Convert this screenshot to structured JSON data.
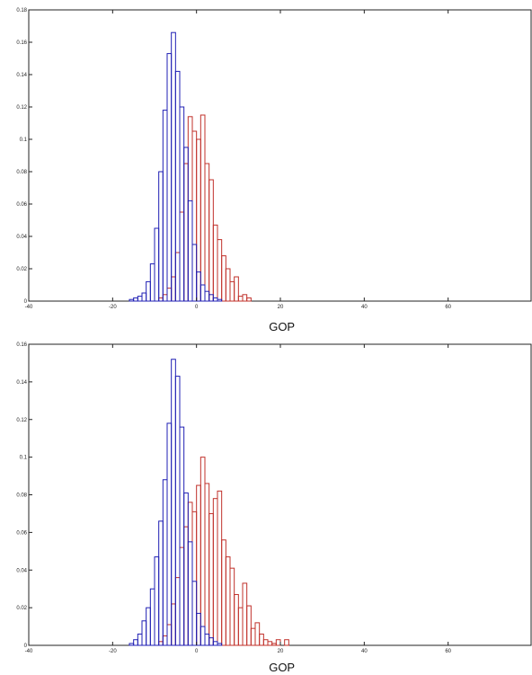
{
  "colors": {
    "blue": "#1f1fb4",
    "red": "#c0302a",
    "axis": "#222222",
    "background": "#ffffff"
  },
  "chart_data": [
    {
      "type": "bar",
      "subtype": "histogram",
      "xlabel": "GOP",
      "ylabel": "",
      "title": "",
      "xlim": [
        -40,
        80
      ],
      "ylim": [
        0,
        0.18
      ],
      "xticks": [
        "-40",
        "-20",
        "0",
        "20",
        "40",
        "60"
      ],
      "yticks": [
        "0",
        "0.02",
        "0.04",
        "0.06",
        "0.08",
        "0.1",
        "0.12",
        "0.14",
        "0.16",
        "0.18"
      ],
      "grid": false,
      "bin_width": 1,
      "series": [
        {
          "color": "blue",
          "bins": [
            [
              -16,
              0.001
            ],
            [
              -15,
              0.002
            ],
            [
              -14,
              0.003
            ],
            [
              -13,
              0.005
            ],
            [
              -12,
              0.012
            ],
            [
              -11,
              0.023
            ],
            [
              -10,
              0.045
            ],
            [
              -9,
              0.08
            ],
            [
              -8,
              0.118
            ],
            [
              -7,
              0.153
            ],
            [
              -6,
              0.166
            ],
            [
              -5,
              0.142
            ],
            [
              -4,
              0.12
            ],
            [
              -3,
              0.095
            ],
            [
              -2,
              0.062
            ],
            [
              -1,
              0.035
            ],
            [
              0,
              0.018
            ],
            [
              1,
              0.01
            ],
            [
              2,
              0.006
            ],
            [
              3,
              0.004
            ],
            [
              4,
              0.002
            ],
            [
              5,
              0.001
            ]
          ]
        },
        {
          "color": "red",
          "bins": [
            [
              -9,
              0.002
            ],
            [
              -8,
              0.004
            ],
            [
              -7,
              0.008
            ],
            [
              -6,
              0.015
            ],
            [
              -5,
              0.03
            ],
            [
              -4,
              0.055
            ],
            [
              -3,
              0.085
            ],
            [
              -2,
              0.114
            ],
            [
              -1,
              0.105
            ],
            [
              0,
              0.1
            ],
            [
              1,
              0.115
            ],
            [
              2,
              0.085
            ],
            [
              3,
              0.075
            ],
            [
              4,
              0.047
            ],
            [
              5,
              0.038
            ],
            [
              6,
              0.028
            ],
            [
              7,
              0.02
            ],
            [
              8,
              0.012
            ],
            [
              9,
              0.015
            ],
            [
              10,
              0.003
            ],
            [
              11,
              0.004
            ],
            [
              12,
              0.002
            ]
          ]
        }
      ]
    },
    {
      "type": "bar",
      "subtype": "histogram",
      "xlabel": "GOP",
      "ylabel": "",
      "title": "",
      "xlim": [
        -40,
        80
      ],
      "ylim": [
        0,
        0.16
      ],
      "xticks": [
        "-40",
        "-20",
        "0",
        "20",
        "40",
        "60"
      ],
      "yticks": [
        "0",
        "0.02",
        "0.04",
        "0.06",
        "0.08",
        "0.1",
        "0.12",
        "0.14",
        "0.16"
      ],
      "grid": false,
      "bin_width": 1,
      "series": [
        {
          "color": "blue",
          "bins": [
            [
              -16,
              0.001
            ],
            [
              -15,
              0.003
            ],
            [
              -14,
              0.006
            ],
            [
              -13,
              0.013
            ],
            [
              -12,
              0.02
            ],
            [
              -11,
              0.03
            ],
            [
              -10,
              0.047
            ],
            [
              -9,
              0.066
            ],
            [
              -8,
              0.088
            ],
            [
              -7,
              0.118
            ],
            [
              -6,
              0.152
            ],
            [
              -5,
              0.143
            ],
            [
              -4,
              0.116
            ],
            [
              -3,
              0.081
            ],
            [
              -2,
              0.055
            ],
            [
              -1,
              0.034
            ],
            [
              0,
              0.017
            ],
            [
              1,
              0.01
            ],
            [
              2,
              0.006
            ],
            [
              3,
              0.004
            ],
            [
              4,
              0.002
            ],
            [
              5,
              0.001
            ]
          ]
        },
        {
          "color": "red",
          "bins": [
            [
              -9,
              0.002
            ],
            [
              -8,
              0.005
            ],
            [
              -7,
              0.011
            ],
            [
              -6,
              0.022
            ],
            [
              -5,
              0.036
            ],
            [
              -4,
              0.052
            ],
            [
              -3,
              0.063
            ],
            [
              -2,
              0.076
            ],
            [
              -1,
              0.071
            ],
            [
              0,
              0.085
            ],
            [
              1,
              0.1
            ],
            [
              2,
              0.086
            ],
            [
              3,
              0.07
            ],
            [
              4,
              0.078
            ],
            [
              5,
              0.082
            ],
            [
              6,
              0.056
            ],
            [
              7,
              0.047
            ],
            [
              8,
              0.041
            ],
            [
              9,
              0.027
            ],
            [
              10,
              0.02
            ],
            [
              11,
              0.033
            ],
            [
              12,
              0.021
            ],
            [
              13,
              0.009
            ],
            [
              14,
              0.012
            ],
            [
              15,
              0.006
            ],
            [
              16,
              0.003
            ],
            [
              17,
              0.002
            ],
            [
              18,
              0.001
            ],
            [
              19,
              0.003
            ],
            [
              21,
              0.003
            ]
          ]
        }
      ]
    }
  ]
}
